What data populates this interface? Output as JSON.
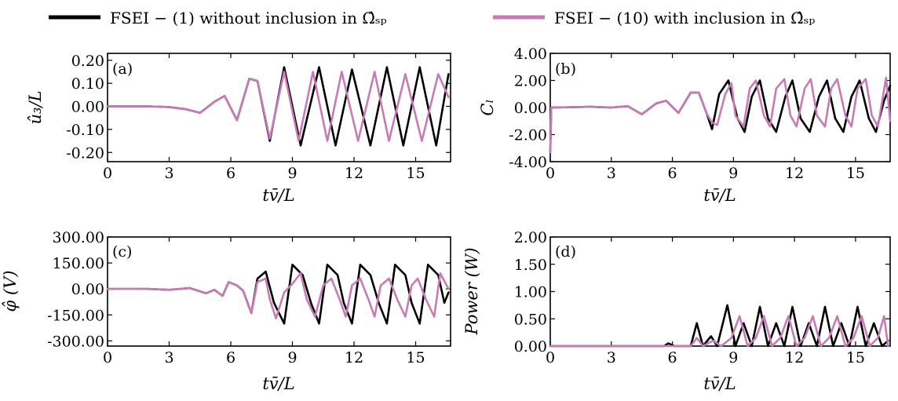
{
  "legend": {
    "items": [
      {
        "label": "FSEI − (1) without inclusion in Ω̂ₛₚ",
        "color": "#000000"
      },
      {
        "label": "FSEI − (10) with inclusion in Ω̂ₛₚ",
        "color": "#c77ab8"
      }
    ]
  },
  "chart_data": [
    {
      "type": "line",
      "panel": "(a)",
      "xlabel": "tv̄/L",
      "ylabel": "û₃/L",
      "xlim": [
        0,
        16.7
      ],
      "ylim": [
        -0.24,
        0.23
      ],
      "xticks": [
        0,
        3,
        6,
        9,
        12,
        15
      ],
      "yticks": [
        -0.2,
        -0.1,
        0.0,
        0.1,
        0.2
      ],
      "ytick_labels": [
        "-0.20",
        "-0.10",
        "0.00",
        "0.10",
        "0.20"
      ],
      "series": [
        {
          "name": "FSEI − (1) without inclusion in Ω̂ₛₚ",
          "color": "#000000",
          "x": [
            0,
            2,
            3,
            3.8,
            4.5,
            5.2,
            5.7,
            6.3,
            6.9,
            7.3,
            7.9,
            8.6,
            9.4,
            10.3,
            11.1,
            11.9,
            12.8,
            13.6,
            14.4,
            15.2,
            16.0,
            16.6
          ],
          "y": [
            0,
            0,
            -0.003,
            -0.012,
            -0.028,
            0.02,
            0.045,
            -0.06,
            0.12,
            0.11,
            -0.15,
            0.17,
            -0.17,
            0.17,
            -0.17,
            0.16,
            -0.17,
            0.17,
            -0.17,
            0.17,
            -0.17,
            0.14
          ]
        },
        {
          "name": "FSEI − (10) with inclusion in Ω̂ₛₚ",
          "color": "#c77ab8",
          "x": [
            0,
            2,
            3,
            3.8,
            4.5,
            5.2,
            5.7,
            6.3,
            6.9,
            7.3,
            7.9,
            8.6,
            9.3,
            10.0,
            10.7,
            11.4,
            12.2,
            13.0,
            13.7,
            14.5,
            15.3,
            16.1,
            16.6
          ],
          "y": [
            0,
            0,
            -0.003,
            -0.012,
            -0.028,
            0.02,
            0.045,
            -0.06,
            0.12,
            0.11,
            -0.14,
            0.15,
            -0.15,
            0.15,
            -0.15,
            0.15,
            -0.15,
            0.15,
            -0.15,
            0.14,
            -0.15,
            0.14,
            0.04
          ]
        }
      ]
    },
    {
      "type": "line",
      "panel": "(b)",
      "xlabel": "tv̄/L",
      "ylabel": "Cₗ",
      "xlim": [
        0,
        16.7
      ],
      "ylim": [
        -4.0,
        4.0
      ],
      "xticks": [
        0,
        3,
        6,
        9,
        12,
        15
      ],
      "yticks": [
        -4,
        -2,
        0,
        2,
        4
      ],
      "ytick_labels": [
        "-4.00",
        "-2.00",
        "0.00",
        "2.00",
        "4.00"
      ],
      "series": [
        {
          "name": "FSEI − (1) without inclusion in Ω̂ₛₚ",
          "color": "#000000",
          "x": [
            0,
            0.05,
            0.2,
            2,
            3,
            3.8,
            4.5,
            5.2,
            5.7,
            6.3,
            6.9,
            7.3,
            7.7,
            7.95,
            8.3,
            8.75,
            9.2,
            9.55,
            9.9,
            10.3,
            10.7,
            11.1,
            11.55,
            11.9,
            12.3,
            12.75,
            13.2,
            13.6,
            14.0,
            14.4,
            14.8,
            15.2,
            15.65,
            16.0,
            16.4,
            16.7
          ],
          "y": [
            -3.3,
            0.0,
            0.0,
            0.05,
            0.0,
            0.1,
            -0.5,
            0.3,
            0.5,
            -0.4,
            1.1,
            1.1,
            -0.5,
            -1.6,
            1.0,
            2.0,
            -0.8,
            -1.8,
            0.8,
            2.0,
            -0.8,
            -1.8,
            0.8,
            2.0,
            -0.8,
            -1.8,
            0.8,
            2.0,
            -0.8,
            -1.8,
            0.8,
            2.0,
            -0.8,
            -1.8,
            0.5,
            1.6
          ]
        },
        {
          "name": "FSEI − (10) with inclusion in Ω̂ₛₚ",
          "color": "#c77ab8",
          "x": [
            0,
            0.05,
            0.2,
            2,
            3,
            3.8,
            4.5,
            5.2,
            5.7,
            6.3,
            6.9,
            7.3,
            7.7,
            7.95,
            8.2,
            8.6,
            8.9,
            9.1,
            9.5,
            9.8,
            10.1,
            10.5,
            10.8,
            11.1,
            11.5,
            11.8,
            12.1,
            12.5,
            12.8,
            13.1,
            13.5,
            13.8,
            14.1,
            14.5,
            14.8,
            15.1,
            15.5,
            15.8,
            16.1,
            16.5,
            16.7
          ],
          "y": [
            -3.3,
            0.0,
            0.0,
            0.05,
            0.0,
            0.1,
            -0.5,
            0.3,
            0.5,
            -0.4,
            1.1,
            1.1,
            -0.5,
            -1.1,
            -1.3,
            1.0,
            1.8,
            -0.6,
            -1.4,
            1.4,
            2.0,
            -0.6,
            -1.4,
            1.4,
            2.1,
            -0.6,
            -1.4,
            1.4,
            2.1,
            -0.6,
            -1.4,
            1.4,
            2.1,
            -0.6,
            -1.4,
            1.4,
            2.1,
            -0.6,
            -1.4,
            2.2,
            -1.0
          ]
        }
      ]
    },
    {
      "type": "line",
      "panel": "(c)",
      "xlabel": "tv̄/L",
      "ylabel": "φ̂ (V)",
      "xlim": [
        0,
        16.7
      ],
      "ylim": [
        -330,
        300
      ],
      "xticks": [
        0,
        3,
        6,
        9,
        12,
        15
      ],
      "yticks": [
        -300,
        -150,
        0,
        150,
        300
      ],
      "ytick_labels": [
        "-300.00",
        "-150.00",
        "0.00",
        "150.00",
        "300.00"
      ],
      "series": [
        {
          "name": "FSEI − (1) without inclusion in Ω̂ₛₚ",
          "color": "#000000",
          "x": [
            0,
            2,
            3,
            4,
            4.8,
            5.2,
            5.6,
            5.9,
            6.3,
            6.6,
            7.0,
            7.3,
            7.7,
            8.1,
            8.6,
            9.0,
            9.5,
            9.9,
            10.3,
            10.7,
            11.2,
            11.5,
            11.9,
            12.3,
            12.8,
            13.2,
            13.6,
            14.0,
            14.5,
            14.8,
            15.2,
            15.6,
            16.1,
            16.4,
            16.6
          ],
          "y": [
            0,
            0,
            -5,
            5,
            -25,
            -5,
            -40,
            40,
            20,
            -10,
            -140,
            60,
            100,
            -80,
            -200,
            140,
            80,
            -80,
            -200,
            140,
            80,
            -80,
            -200,
            140,
            80,
            -80,
            -200,
            140,
            80,
            -80,
            -200,
            140,
            80,
            -80,
            -20
          ]
        },
        {
          "name": "FSEI − (10) with inclusion in Ω̂ₛₚ",
          "color": "#c77ab8",
          "x": [
            0,
            2,
            3,
            4,
            4.8,
            5.2,
            5.6,
            5.9,
            6.3,
            6.6,
            7.0,
            7.3,
            7.7,
            7.9,
            8.2,
            8.6,
            9.0,
            9.4,
            9.7,
            10.1,
            10.5,
            10.9,
            11.3,
            11.6,
            11.9,
            12.3,
            12.7,
            13.0,
            13.3,
            13.7,
            14.1,
            14.5,
            14.8,
            15.1,
            15.5,
            15.9,
            16.2,
            16.6
          ],
          "y": [
            0,
            0,
            -5,
            5,
            -25,
            -5,
            -40,
            40,
            20,
            -10,
            -140,
            40,
            60,
            -60,
            -170,
            -20,
            30,
            90,
            -60,
            -160,
            20,
            60,
            -60,
            -160,
            20,
            60,
            -60,
            -160,
            20,
            60,
            -60,
            -160,
            20,
            60,
            -60,
            -160,
            90,
            0
          ]
        }
      ]
    },
    {
      "type": "line",
      "panel": "(d)",
      "xlabel": "tv̄/L",
      "ylabel": "Power (W)",
      "xlim": [
        0,
        16.7
      ],
      "ylim": [
        0,
        2.0
      ],
      "xticks": [
        0,
        3,
        6,
        9,
        12,
        15
      ],
      "yticks": [
        0,
        0.5,
        1.0,
        1.5,
        2.0
      ],
      "ytick_labels": [
        "0.00",
        "0.50",
        "1.00",
        "1.50",
        "2.00"
      ],
      "series": [
        {
          "name": "FSEI − (1) without inclusion in Ω̂ₛₚ",
          "color": "#000000",
          "x": [
            0,
            5.6,
            5.8,
            6.1,
            6.9,
            7.2,
            7.5,
            7.9,
            8.2,
            8.7,
            9.1,
            9.5,
            9.9,
            10.3,
            10.7,
            11.1,
            11.5,
            11.9,
            12.3,
            12.7,
            13.1,
            13.5,
            13.9,
            14.3,
            14.7,
            15.1,
            15.5,
            15.9,
            16.3,
            16.6
          ],
          "y": [
            0,
            0,
            0.05,
            0,
            0,
            0.42,
            0,
            0.18,
            0,
            0.75,
            0,
            0.42,
            0,
            0.72,
            0,
            0.42,
            0,
            0.72,
            0,
            0.42,
            0,
            0.72,
            0,
            0.42,
            0,
            0.72,
            0,
            0.42,
            0,
            0.1
          ]
        },
        {
          "name": "FSEI − (10) with inclusion in Ω̂ₛₚ",
          "color": "#c77ab8",
          "x": [
            0,
            6.9,
            7.2,
            7.5,
            8.0,
            8.4,
            8.9,
            9.3,
            9.7,
            10.1,
            10.5,
            10.9,
            11.3,
            11.7,
            12.1,
            12.5,
            12.9,
            13.3,
            13.7,
            14.1,
            14.5,
            14.9,
            15.3,
            15.7,
            16.1,
            16.4,
            16.6
          ],
          "y": [
            0,
            0,
            0.15,
            0,
            0.1,
            0,
            0.15,
            0.55,
            0,
            0.15,
            0.55,
            0,
            0.15,
            0.55,
            0,
            0.15,
            0.55,
            0,
            0.15,
            0.55,
            0,
            0.15,
            0.55,
            0,
            0.15,
            0.55,
            0
          ]
        }
      ]
    }
  ]
}
